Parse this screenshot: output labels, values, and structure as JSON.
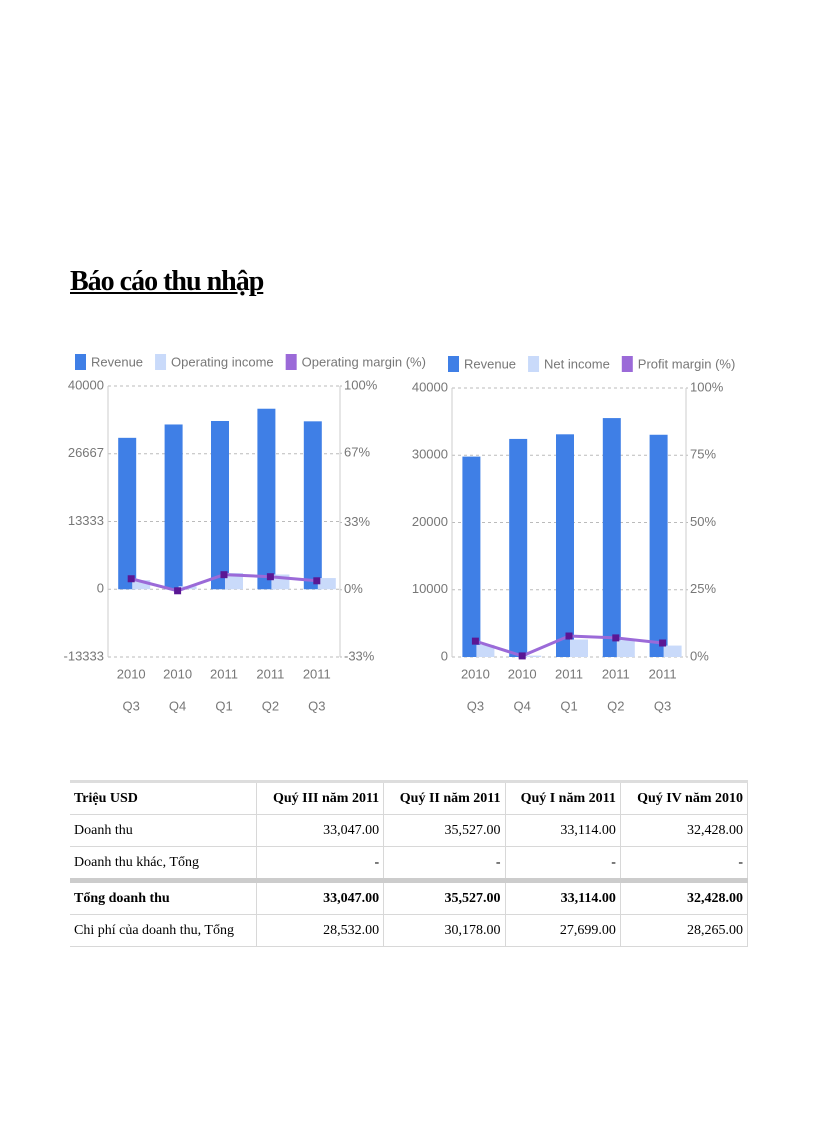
{
  "heading": "Báo cáo thu  nhập",
  "chart_data": [
    {
      "type": "bar",
      "categories": [
        [
          "2010",
          "Q3"
        ],
        [
          "2010",
          "Q4"
        ],
        [
          "2011",
          "Q1"
        ],
        [
          "2011",
          "Q2"
        ],
        [
          "2011",
          "Q3"
        ]
      ],
      "series": [
        {
          "name": "Revenue",
          "color": "#3f7fe6",
          "values": [
            29800,
            32428,
            33114,
            35527,
            33047
          ]
        },
        {
          "name": "Operating income",
          "color": "#c9dafa",
          "values": [
            1800,
            600,
            3200,
            2900,
            2200
          ]
        },
        {
          "name": "Operating margin (%)",
          "color": "#9b6ad8",
          "type": "line",
          "axis": "y2",
          "values": [
            5.4,
            -0.5,
            7.4,
            6.4,
            4.4
          ]
        }
      ],
      "ylim": [
        -13333,
        40000
      ],
      "yticks": [
        -13333,
        0,
        13333,
        26667,
        40000
      ],
      "y2lim": [
        -33,
        100
      ],
      "y2ticks": [
        {
          "value": -33,
          "label": "-33%"
        },
        {
          "value": 0,
          "label": "0%"
        },
        {
          "value": 33,
          "label": "33%"
        },
        {
          "value": 67,
          "label": "67%"
        },
        {
          "value": 100,
          "label": "100%"
        }
      ],
      "grid": true
    },
    {
      "type": "bar",
      "categories": [
        [
          "2010",
          "Q3"
        ],
        [
          "2010",
          "Q4"
        ],
        [
          "2011",
          "Q1"
        ],
        [
          "2011",
          "Q2"
        ],
        [
          "2011",
          "Q3"
        ]
      ],
      "series": [
        {
          "name": "Revenue",
          "color": "#3f7fe6",
          "values": [
            29800,
            32428,
            33114,
            35527,
            33047
          ]
        },
        {
          "name": "Net income",
          "color": "#c9dafa",
          "values": [
            1800,
            200,
            2600,
            2500,
            1700
          ]
        },
        {
          "name": "Profit margin (%)",
          "color": "#9b6ad8",
          "type": "line",
          "axis": "y2",
          "values": [
            5.9,
            0.4,
            7.8,
            7.1,
            5.2
          ]
        }
      ],
      "ylim": [
        0,
        40000
      ],
      "yticks": [
        0,
        10000,
        20000,
        30000,
        40000
      ],
      "y2lim": [
        0,
        100
      ],
      "y2ticks": [
        {
          "value": 0,
          "label": "0%"
        },
        {
          "value": 25,
          "label": "25%"
        },
        {
          "value": 50,
          "label": "50%"
        },
        {
          "value": 75,
          "label": "75%"
        },
        {
          "value": 100,
          "label": "100%"
        }
      ],
      "grid": true
    }
  ],
  "table": {
    "rows": [
      [
        "Triệu USD",
        "Quý III năm 2011",
        "Quý II năm 2011",
        "Quý I năm 2011",
        "Quý IV năm 2010"
      ],
      [
        "Doanh thu",
        "33,047.00",
        "35,527.00",
        "33,114.00",
        "32,428.00"
      ],
      [
        "Doanh thu khác, Tổng",
        "-",
        "-",
        "-",
        "-"
      ],
      [
        "Tổng doanh thu",
        "33,047.00",
        "35,527.00",
        "33,114.00",
        "32,428.00"
      ],
      [
        "Chi phí của doanh thu, Tổng",
        "28,532.00",
        "30,178.00",
        "27,699.00",
        "28,265.00"
      ]
    ]
  }
}
